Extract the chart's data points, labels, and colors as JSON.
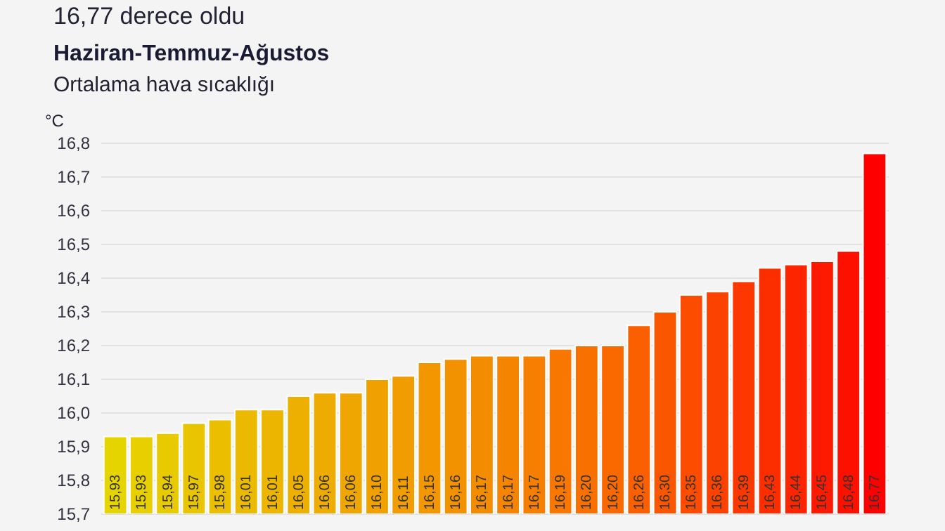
{
  "chart_data": {
    "type": "bar",
    "title": "Haziran-Temmuz-Ağustos",
    "subtitle": "Ortalama hava sıcaklığı",
    "ylabel": "°C",
    "annotations": [
      "16,77 derece oldu"
    ],
    "categories": [
      null,
      null,
      null,
      null,
      null,
      null,
      null,
      null,
      null,
      null,
      null,
      null,
      null,
      null,
      null,
      null,
      null,
      null,
      null,
      null,
      null,
      null,
      null,
      null,
      null,
      null,
      null,
      null,
      null,
      null
    ],
    "values": [
      15.93,
      15.93,
      15.94,
      15.97,
      15.98,
      16.01,
      16.01,
      16.05,
      16.06,
      16.06,
      16.1,
      16.11,
      16.15,
      16.16,
      16.17,
      16.17,
      16.17,
      16.19,
      16.2,
      16.2,
      16.26,
      16.3,
      16.35,
      16.36,
      16.39,
      16.43,
      16.44,
      16.45,
      16.48,
      16.77
    ],
    "colors": [
      "#e6d400",
      "#e7cf00",
      "#e8ca00",
      "#e9c400",
      "#eabf00",
      "#ebba00",
      "#ecb500",
      "#edb000",
      "#eeab00",
      "#efa600",
      "#f0a100",
      "#f19c00",
      "#f29700",
      "#f39200",
      "#f48c00",
      "#f58500",
      "#f67e00",
      "#f77700",
      "#f87000",
      "#f96900",
      "#fa6000",
      "#fa5600",
      "#fb4c00",
      "#fb4200",
      "#fc3800",
      "#fc2e00",
      "#fd2400",
      "#fd1a00",
      "#fe1000",
      "#ff0000"
    ],
    "value_labels": [
      "15,93",
      "15,93",
      "15,94",
      "15,97",
      "15,98",
      "16,01",
      "16,01",
      "16,05",
      "16,06",
      "16,06",
      "16,10",
      "16,11",
      "16,15",
      "16,16",
      "16,17",
      "16,17",
      "16,17",
      "16,19",
      "16,20",
      "16,20",
      "16,26",
      "16,30",
      "16,35",
      "16,36",
      "16,39",
      "16,43",
      "16,44",
      "16,45",
      "16,48",
      "16,77"
    ],
    "ylim": [
      15.7,
      16.8
    ],
    "yticks": [
      {
        "value": 15.7,
        "label": "15,7"
      },
      {
        "value": 15.8,
        "label": "15,8"
      },
      {
        "value": 15.9,
        "label": "15,9"
      },
      {
        "value": 16.0,
        "label": "16,0"
      },
      {
        "value": 16.1,
        "label": "16,1"
      },
      {
        "value": 16.2,
        "label": "16,2"
      },
      {
        "value": 16.3,
        "label": "16,3"
      },
      {
        "value": 16.4,
        "label": "16,4"
      },
      {
        "value": 16.5,
        "label": "16,5"
      },
      {
        "value": 16.6,
        "label": "16,6"
      },
      {
        "value": 16.7,
        "label": "16,7"
      },
      {
        "value": 16.8,
        "label": "16,8"
      }
    ],
    "grid": "y",
    "legend": false
  }
}
